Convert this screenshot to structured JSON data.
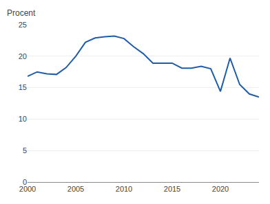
{
  "chart_data": {
    "type": "line",
    "ylabel": "Procent",
    "x": [
      2000,
      2001,
      2002,
      2003,
      2004,
      2005,
      2006,
      2007,
      2008,
      2009,
      2010,
      2011,
      2012,
      2013,
      2014,
      2015,
      2016,
      2017,
      2018,
      2019,
      2020,
      2021,
      2022,
      2023,
      2024
    ],
    "values": [
      16.8,
      17.5,
      17.2,
      17.1,
      18.2,
      20.0,
      22.2,
      22.9,
      23.1,
      23.2,
      22.8,
      21.5,
      20.4,
      18.9,
      18.9,
      18.9,
      18.1,
      18.1,
      18.4,
      18.0,
      14.4,
      19.7,
      15.5,
      14.0,
      13.5
    ],
    "color": "#1f5ca8",
    "xlim": [
      2000,
      2024
    ],
    "xticks": [
      2000,
      2005,
      2010,
      2015,
      2020
    ],
    "ylim": [
      0,
      25
    ],
    "yticks": [
      0,
      5,
      10,
      15,
      20,
      25
    ],
    "grid": true
  }
}
